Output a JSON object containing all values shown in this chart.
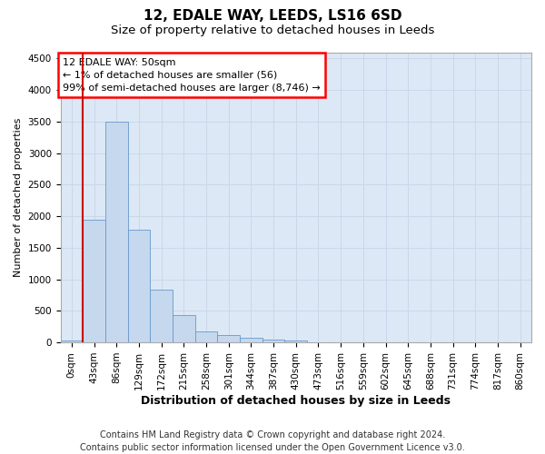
{
  "title_line1": "12, EDALE WAY, LEEDS, LS16 6SD",
  "title_line2": "Size of property relative to detached houses in Leeds",
  "xlabel": "Distribution of detached houses by size in Leeds",
  "ylabel": "Number of detached properties",
  "categories": [
    "0sqm",
    "43sqm",
    "86sqm",
    "129sqm",
    "172sqm",
    "215sqm",
    "258sqm",
    "301sqm",
    "344sqm",
    "387sqm",
    "430sqm",
    "473sqm",
    "516sqm",
    "559sqm",
    "602sqm",
    "645sqm",
    "688sqm",
    "731sqm",
    "774sqm",
    "817sqm",
    "860sqm"
  ],
  "bar_values": [
    30,
    1940,
    3500,
    1780,
    840,
    430,
    170,
    110,
    70,
    45,
    30,
    0,
    0,
    0,
    0,
    0,
    0,
    0,
    0,
    0,
    0
  ],
  "bar_color": "#c5d8ee",
  "bar_edge_color": "#6699cc",
  "annotation_box_text": "12 EDALE WAY: 50sqm\n← 1% of detached houses are smaller (56)\n99% of semi-detached houses are larger (8,746) →",
  "vline_x_index": 1,
  "vline_color": "#cc0000",
  "ylim": [
    0,
    4600
  ],
  "yticks": [
    0,
    500,
    1000,
    1500,
    2000,
    2500,
    3000,
    3500,
    4000,
    4500
  ],
  "grid_color": "#c8d8ea",
  "bg_color": "#dce8f5",
  "footer_line1": "Contains HM Land Registry data © Crown copyright and database right 2024.",
  "footer_line2": "Contains public sector information licensed under the Open Government Licence v3.0.",
  "title1_fontsize": 11,
  "title2_fontsize": 9.5,
  "xlabel_fontsize": 9,
  "ylabel_fontsize": 8,
  "tick_fontsize": 7.5,
  "footer_fontsize": 7,
  "annot_fontsize": 8
}
